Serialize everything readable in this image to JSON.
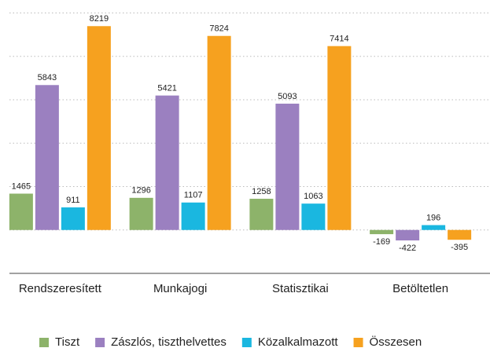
{
  "chart_data": {
    "type": "bar",
    "categories": [
      "Rendszeresített",
      "Munkajogi",
      "Statisztikai",
      "Betöltetlen"
    ],
    "series": [
      {
        "name": "Tiszt",
        "color": "#8db36a",
        "values": [
          1465,
          1296,
          1258,
          -169
        ]
      },
      {
        "name": "Zászlós, tiszthelvettes",
        "color": "#9b80c0",
        "values": [
          5843,
          5421,
          5093,
          -422
        ]
      },
      {
        "name": "Közalkalmazott",
        "color": "#1ab7e0",
        "values": [
          911,
          1107,
          1063,
          196
        ]
      },
      {
        "name": "Összesen",
        "color": "#f6a11f",
        "values": [
          8219,
          7824,
          7414,
          -395
        ]
      }
    ],
    "ylim": [
      -1750,
      8750
    ],
    "yticks": [
      0,
      1750,
      3500,
      5250,
      7000,
      8750
    ],
    "grid": true
  }
}
